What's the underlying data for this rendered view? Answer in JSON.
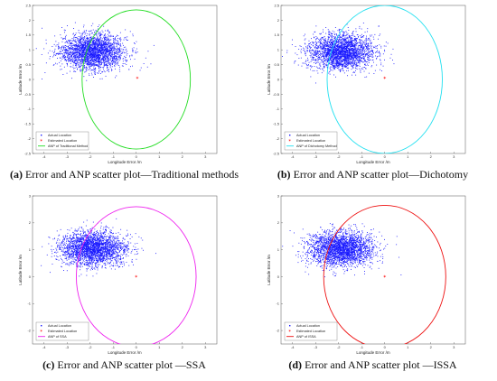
{
  "colors": {
    "scatter": "#1a1aff",
    "estimate": "#ff1a1a",
    "axes": "#555555"
  },
  "chart_data": [
    {
      "type": "scatter",
      "panel_id": "a",
      "caption_id": "(a)",
      "caption_text": " Error and ANP scatter plot—Traditional methods",
      "xlabel": "Longitude Error /m",
      "ylabel": "Latitude Error /m",
      "xlim": [
        -4.5,
        3.5
      ],
      "ylim": [
        -2.5,
        2.5
      ],
      "xticks": [
        -4,
        -3,
        -2,
        -1,
        0,
        1,
        2,
        3
      ],
      "yticks": [
        -2.5,
        -2,
        -1.5,
        -1,
        -0.5,
        0,
        0.5,
        1,
        1.5,
        2,
        2.5
      ],
      "grid": false,
      "legend_position": "lower-left",
      "legend": [
        "Actual Location",
        "Estimated Location",
        "ANP of Traditional Method"
      ],
      "scatter_cloud": {
        "center_x": -1.9,
        "center_y": 0.95,
        "sigma_x": 0.7,
        "sigma_y": 0.3
      },
      "estimated_location": [
        0.05,
        0.05
      ],
      "circle": {
        "center": [
          0.0,
          0.0
        ],
        "radius": 2.35,
        "color": "#22dd22"
      }
    },
    {
      "type": "scatter",
      "panel_id": "b",
      "caption_id": "(b)",
      "caption_text": " Error and ANP scatter plot—Dichotomy",
      "xlabel": "Longitude Error /m",
      "ylabel": "Latitude Error /m",
      "xlim": [
        -4.5,
        3.5
      ],
      "ylim": [
        -2.5,
        2.5
      ],
      "xticks": [
        -4,
        -3,
        -2,
        -1,
        0,
        1,
        2,
        3
      ],
      "yticks": [
        -2.5,
        -2,
        -1.5,
        -1,
        -0.5,
        0,
        0.5,
        1,
        1.5,
        2,
        2.5
      ],
      "grid": false,
      "legend_position": "lower-left",
      "legend": [
        "Actual Location",
        "Estimated Location",
        "ANP of Dichotomy Method"
      ],
      "scatter_cloud": {
        "center_x": -1.9,
        "center_y": 0.95,
        "sigma_x": 0.7,
        "sigma_y": 0.3
      },
      "estimated_location": [
        0.0,
        0.05
      ],
      "circle": {
        "center": [
          0.0,
          0.0
        ],
        "radius": 2.5,
        "color": "#22e0f0"
      }
    },
    {
      "type": "scatter",
      "panel_id": "c",
      "caption_id": "(c)",
      "caption_text": " Error and ANP scatter plot —SSA",
      "xlabel": "Longitude Error /m",
      "ylabel": "Latitude Error /m",
      "xlim": [
        -4.5,
        3.5
      ],
      "ylim": [
        -2.5,
        3.0
      ],
      "xticks": [
        -4,
        -3,
        -2,
        -1,
        0,
        1,
        2,
        3
      ],
      "yticks": [
        -2,
        -1,
        0,
        1,
        2,
        3
      ],
      "grid": false,
      "legend_position": "lower-left",
      "legend": [
        "Actual Location",
        "Estimated Location",
        "ANP of SSA"
      ],
      "scatter_cloud": {
        "center_x": -1.9,
        "center_y": 1.05,
        "sigma_x": 0.7,
        "sigma_y": 0.32
      },
      "estimated_location": [
        0.0,
        0.0
      ],
      "circle": {
        "center": [
          0.0,
          0.0
        ],
        "radius": 2.6,
        "color": "#ee22ee"
      }
    },
    {
      "type": "scatter",
      "panel_id": "d",
      "caption_id": "(d)",
      "caption_text": " Error and ANP scatter plot —ISSA",
      "xlabel": "Longitude Error /m",
      "ylabel": "Latitude Error /m",
      "xlim": [
        -4.5,
        3.5
      ],
      "ylim": [
        -2.5,
        3.0
      ],
      "xticks": [
        -4,
        -3,
        -2,
        -1,
        0,
        1,
        2,
        3
      ],
      "yticks": [
        -2,
        -1,
        0,
        1,
        2,
        3
      ],
      "grid": false,
      "legend_position": "lower-left",
      "legend": [
        "Actual Location",
        "Estimated Location",
        "ANP of ISSA"
      ],
      "scatter_cloud": {
        "center_x": -1.9,
        "center_y": 1.05,
        "sigma_x": 0.7,
        "sigma_y": 0.32
      },
      "estimated_location": [
        0.0,
        0.0
      ],
      "circle": {
        "center": [
          0.0,
          0.0
        ],
        "radius": 2.65,
        "color": "#ee1111"
      }
    }
  ]
}
